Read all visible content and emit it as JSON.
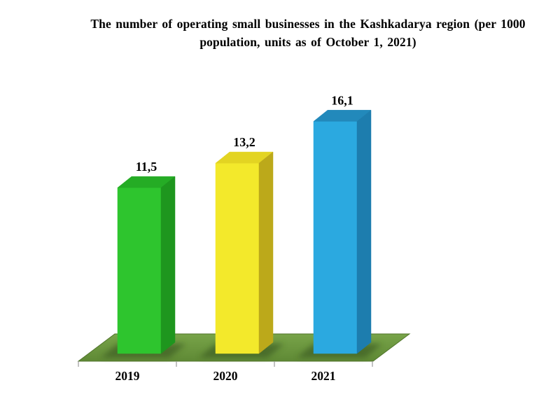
{
  "chart_data": {
    "type": "bar",
    "style": "3d",
    "title": "The number of operating small businesses in the Kashkadarya region (per 1000 population, units as of October 1, 2021)",
    "title_lines": [
      "The number of operating small businesses in the Kashkadarya region (per 1000",
      "population, units as of October 1, 2021)"
    ],
    "categories": [
      "2019",
      "2020",
      "2021"
    ],
    "values": [
      11.5,
      13.2,
      16.1
    ],
    "value_labels": [
      "11,5",
      "13,2",
      "16,1"
    ],
    "grid": false,
    "legend": "none",
    "background": "#FFFFFF",
    "text_color": "#000000",
    "axis_color": "#9B9B9B",
    "shadow_color": "#33501E",
    "floor": {
      "top_color": "#78A449",
      "bottom_color": "#5F8935",
      "edge_color": "#50742B"
    },
    "bar_colors": [
      {
        "front": "#2EC52E",
        "top": "#25AC25",
        "side": "#1E961E"
      },
      {
        "front": "#F3E92B",
        "top": "#E3D422",
        "side": "#BCA91A"
      },
      {
        "front": "#2BA9E0",
        "top": "#2289BB",
        "side": "#1D7DAE"
      }
    ]
  }
}
